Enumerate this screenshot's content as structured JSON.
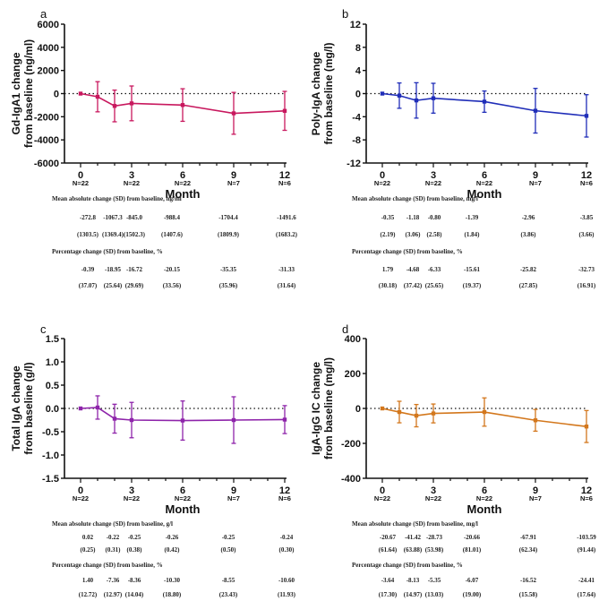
{
  "chart_data": [
    {
      "type": "line",
      "panel_label": "a",
      "ylabel": [
        "Gd-IgA1 change",
        "from baseline (ng/ml)"
      ],
      "xlabel": "Month",
      "ylim": [
        -6000,
        6000
      ],
      "yticks": [
        -6000,
        -4000,
        -2000,
        0,
        2000,
        4000,
        6000
      ],
      "ytick_labels": [
        "-6000",
        "-4000",
        "-2000",
        "0",
        "2000",
        "4000",
        "6000"
      ],
      "xticks": [
        0,
        3,
        6,
        9,
        12
      ],
      "xtick_labels": [
        "0",
        "3",
        "6",
        "9",
        "12"
      ],
      "n_labels": [
        "N=22",
        "N=22",
        "N=22",
        "N=7",
        "N=6"
      ],
      "color": "#c8185e",
      "x": [
        0,
        1,
        2,
        3,
        6,
        9,
        12
      ],
      "mean": [
        0,
        -272.8,
        -1067.3,
        -845.0,
        -988.4,
        -1704.4,
        -1491.6
      ],
      "sd": [
        0,
        1303.5,
        1369.4,
        1502.3,
        1407.6,
        1809.9,
        1683.2
      ],
      "table": {
        "abs_header": "Mean absolute change (SD) from baseline, ng/ml",
        "abs_values": [
          "-272.8",
          "-1067.3",
          "-845.0",
          "-988.4",
          "-1704.4",
          "-1491.6"
        ],
        "abs_sd": [
          "(1303.5)",
          "(1369.4)",
          "(1502.3)",
          "(1407.6)",
          "(1809.9)",
          "(1683.2)"
        ],
        "pct_header": "Percentage change (SD) from baseline, %",
        "pct_values": [
          "-0.39",
          "-18.95",
          "-16.72",
          "-20.15",
          "-35.35",
          "-31.33"
        ],
        "pct_sd": [
          "(37.07)",
          "(25.64)",
          "(29.69)",
          "(33.56)",
          "(35.96)",
          "(31.64)"
        ]
      }
    },
    {
      "type": "line",
      "panel_label": "b",
      "ylabel": [
        "Poly-IgA change",
        "from baseline (mg/l)"
      ],
      "xlabel": "Month",
      "ylim": [
        -12,
        12
      ],
      "yticks": [
        -12,
        -8,
        -4,
        0,
        4,
        8,
        12
      ],
      "ytick_labels": [
        "-12",
        "-8",
        "-4",
        "0",
        "4",
        "8",
        "12"
      ],
      "xticks": [
        0,
        3,
        6,
        9,
        12
      ],
      "xtick_labels": [
        "0",
        "3",
        "6",
        "9",
        "12"
      ],
      "n_labels": [
        "N=22",
        "N=22",
        "N=22",
        "N=7",
        "N=6"
      ],
      "color": "#1f2db8",
      "x": [
        0,
        1,
        2,
        3,
        6,
        9,
        12
      ],
      "mean": [
        0,
        -0.35,
        -1.18,
        -0.8,
        -1.39,
        -2.96,
        -3.85
      ],
      "sd": [
        0,
        2.19,
        3.06,
        2.58,
        1.84,
        3.86,
        3.66
      ],
      "table": {
        "abs_header": "Mean absolute change (SD) from baseline, mg/l",
        "abs_values": [
          "-0.35",
          "-1.18",
          "-0.80",
          "-1.39",
          "-2.96",
          "-3.85"
        ],
        "abs_sd": [
          "(2.19)",
          "(3.06)",
          "(2.58)",
          "(1.84)",
          "(3.86)",
          "(3.66)"
        ],
        "pct_header": "Percentage change (SD) from baseline, %",
        "pct_values": [
          "1.79",
          "-4.68",
          "-6.33",
          "-15.61",
          "-25.82",
          "-32.73"
        ],
        "pct_sd": [
          "(30.18)",
          "(37.42)",
          "(25.65)",
          "(19.37)",
          "(27.85)",
          "(16.91)"
        ]
      }
    },
    {
      "type": "line",
      "panel_label": "c",
      "ylabel": [
        "Total IgA change",
        "from baseline (g/l)"
      ],
      "xlabel": "Month",
      "ylim": [
        -1.5,
        1.5
      ],
      "yticks": [
        -1.5,
        -1.0,
        -0.5,
        0,
        0.5,
        1.0,
        1.5
      ],
      "ytick_labels": [
        "-1.5",
        "-1.0",
        "-0.5",
        "0.0",
        "0.5",
        "1.0",
        "1.5"
      ],
      "xticks": [
        0,
        3,
        6,
        9,
        12
      ],
      "xtick_labels": [
        "0",
        "3",
        "6",
        "9",
        "12"
      ],
      "n_labels": [
        "N=22",
        "N=22",
        "N=22",
        "N=7",
        "N=6"
      ],
      "color": "#8e24aa",
      "x": [
        0,
        1,
        2,
        3,
        6,
        9,
        12
      ],
      "mean": [
        0,
        0.02,
        -0.22,
        -0.25,
        -0.26,
        -0.25,
        -0.24
      ],
      "sd": [
        0,
        0.25,
        0.31,
        0.38,
        0.42,
        0.5,
        0.3
      ],
      "table": {
        "abs_header": "Mean absolute change (SD) from baseline, g/l",
        "abs_values": [
          "0.02",
          "-0.22",
          "-0.25",
          "-0.26",
          "-0.25",
          "-0.24"
        ],
        "abs_sd": [
          "(0.25)",
          "(0.31)",
          "(0.38)",
          "(0.42)",
          "(0.50)",
          "(0.30)"
        ],
        "pct_header": "Percentage change (SD) from baseline, %",
        "pct_values": [
          "1.40",
          "-7.36",
          "-8.36",
          "-10.30",
          "-8.55",
          "-10.60"
        ],
        "pct_sd": [
          "(12.72)",
          "(12.97)",
          "(14.04)",
          "(18.80)",
          "(23.43)",
          "(11.93)"
        ]
      }
    },
    {
      "type": "line",
      "panel_label": "d",
      "ylabel": [
        "IgA-IgG IC change",
        "from baseline (mg/l)"
      ],
      "xlabel": "Month",
      "ylim": [
        -400,
        400
      ],
      "yticks": [
        -400,
        -200,
        0,
        200,
        400
      ],
      "ytick_labels": [
        "-400",
        "-200",
        "0",
        "200",
        "400"
      ],
      "xticks": [
        0,
        3,
        6,
        9,
        12
      ],
      "xtick_labels": [
        "0",
        "3",
        "6",
        "9",
        "12"
      ],
      "n_labels": [
        "N=22",
        "N=22",
        "N=22",
        "N=7",
        "N=6"
      ],
      "color": "#d3771c",
      "x": [
        0,
        1,
        2,
        3,
        6,
        9,
        12
      ],
      "mean": [
        0,
        -20.67,
        -41.42,
        -28.73,
        -20.66,
        -67.91,
        -103.59
      ],
      "sd": [
        0,
        61.64,
        63.88,
        53.98,
        81.01,
        62.34,
        91.44
      ],
      "table": {
        "abs_header": "Mean absolute change (SD) from baseline, mg/l",
        "abs_values": [
          "-20.67",
          "-41.42",
          "-28.73",
          "-20.66",
          "-67.91",
          "-103.59"
        ],
        "abs_sd": [
          "(61.64)",
          "(63.88)",
          "(53.98)",
          "(81.01)",
          "(62.34)",
          "(91.44)"
        ],
        "pct_header": "Percentage change (SD) from baseline, %",
        "pct_values": [
          "-3.64",
          "-8.13",
          "-5.35",
          "-6.07",
          "-16.52",
          "-24.41"
        ],
        "pct_sd": [
          "(17.30)",
          "(14.97)",
          "(13.03)",
          "(19.00)",
          "(15.58)",
          "(17.64)"
        ]
      }
    }
  ]
}
